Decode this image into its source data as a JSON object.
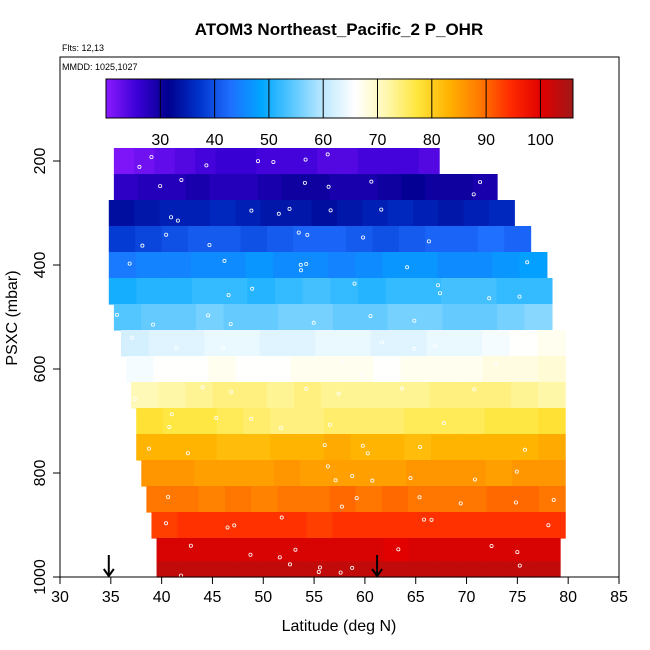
{
  "chart_data": {
    "type": "heatmap",
    "title": "ATOM3 Northeast_Pacific_2 P_OHR",
    "annotations": [
      "Flts: 12,13",
      "MMDD: 1025,1027"
    ],
    "xlabel": "Latitude (deg N)",
    "ylabel": "PSXC (mbar)",
    "xlim": [
      30,
      85
    ],
    "ylim": [
      1000,
      0
    ],
    "xticks": [
      30,
      35,
      40,
      45,
      50,
      55,
      60,
      65,
      70,
      75,
      80,
      85
    ],
    "yticks": [
      200,
      400,
      600,
      800,
      1000
    ],
    "colorbar": {
      "range": [
        20,
        106
      ],
      "ticks": [
        30,
        40,
        50,
        60,
        70,
        80,
        90,
        100
      ],
      "colors": [
        "#8b1aff",
        "#3b00d6",
        "#00008e",
        "#0033cc",
        "#1f6fff",
        "#00a6ff",
        "#5ac8ff",
        "#bfe9ff",
        "#ffffff",
        "#fff8b0",
        "#ffe63c",
        "#ffb300",
        "#ff7a00",
        "#ff2a00",
        "#e00000",
        "#a01818"
      ]
    },
    "arrows_at_lat": [
      34.8,
      61.2
    ],
    "rows": [
      {
        "p": 200,
        "lat": [
          35.3,
          67.3
        ],
        "v": [
          21,
          22,
          23,
          24,
          25,
          26,
          26,
          25,
          25,
          25,
          24,
          24,
          25,
          25,
          25,
          24
        ]
      },
      {
        "p": 250,
        "lat": [
          35.3,
          73.0
        ],
        "v": [
          27,
          28,
          28,
          29,
          28,
          28,
          29,
          30,
          30,
          29,
          29,
          30,
          31,
          30,
          30,
          29
        ]
      },
      {
        "p": 300,
        "lat": [
          34.8,
          74.7
        ],
        "v": [
          33,
          34,
          35,
          35,
          36,
          35,
          34,
          34,
          33,
          34,
          35,
          36,
          35,
          34,
          35,
          36
        ]
      },
      {
        "p": 350,
        "lat": [
          34.8,
          76.3
        ],
        "v": [
          38,
          39,
          40,
          41,
          41,
          40,
          41,
          42,
          42,
          41,
          40,
          41,
          42,
          42,
          43,
          42
        ]
      },
      {
        "p": 400,
        "lat": [
          34.8,
          77.9
        ],
        "v": [
          44,
          45,
          45,
          46,
          46,
          47,
          46,
          46,
          45,
          46,
          47,
          47,
          46,
          46,
          47,
          48
        ]
      },
      {
        "p": 450,
        "lat": [
          34.8,
          78.4
        ],
        "v": [
          50,
          51,
          51,
          52,
          52,
          51,
          52,
          53,
          52,
          51,
          52,
          52,
          53,
          53,
          52,
          52
        ]
      },
      {
        "p": 500,
        "lat": [
          35.3,
          78.4
        ],
        "v": [
          54,
          55,
          55,
          56,
          55,
          55,
          56,
          56,
          55,
          55,
          56,
          56,
          55,
          55,
          56,
          57
        ]
      },
      {
        "p": 550,
        "lat": [
          36.0,
          79.7
        ],
        "v": [
          62,
          63,
          63,
          64,
          64,
          63,
          63,
          64,
          64,
          63,
          63,
          64,
          64,
          65,
          66,
          67
        ]
      },
      {
        "p": 600,
        "lat": [
          36.5,
          79.7
        ],
        "v": [
          65,
          66,
          66,
          67,
          66,
          66,
          67,
          67,
          67,
          66,
          67,
          67,
          67,
          68,
          68,
          69
        ]
      },
      {
        "p": 650,
        "lat": [
          37.0,
          79.7
        ],
        "v": [
          71,
          72,
          73,
          74,
          74,
          73,
          74,
          73,
          73,
          73,
          73,
          74,
          74,
          74,
          73,
          72
        ]
      },
      {
        "p": 700,
        "lat": [
          37.5,
          79.7
        ],
        "v": [
          78,
          77,
          77,
          76,
          75,
          74,
          74,
          75,
          75,
          75,
          76,
          76,
          76,
          77,
          77,
          78
        ]
      },
      {
        "p": 750,
        "lat": [
          37.5,
          79.7
        ],
        "v": [
          83,
          83,
          83,
          82,
          82,
          83,
          83,
          84,
          83,
          83,
          82,
          83,
          83,
          83,
          83,
          84
        ]
      },
      {
        "p": 800,
        "lat": [
          38.0,
          79.7
        ],
        "v": [
          86,
          86,
          85,
          85,
          85,
          86,
          85,
          85,
          85,
          85,
          86,
          86,
          86,
          85,
          86,
          86
        ]
      },
      {
        "p": 850,
        "lat": [
          38.5,
          79.7
        ],
        "v": [
          89,
          89,
          88,
          89,
          88,
          89,
          89,
          90,
          89,
          90,
          89,
          89,
          89,
          90,
          90,
          89
        ]
      },
      {
        "p": 900,
        "lat": [
          39.0,
          79.7
        ],
        "v": [
          93,
          94,
          94,
          94,
          94,
          94,
          93,
          94,
          94,
          94,
          94,
          94,
          94,
          94,
          94,
          94
        ]
      },
      {
        "p": 950,
        "lat": [
          39.5,
          79.2
        ],
        "v": [
          101,
          101,
          101,
          101,
          101,
          101,
          101,
          101,
          101,
          100,
          101,
          101,
          101,
          101,
          101,
          101
        ]
      },
      {
        "p": 990,
        "lat": [
          39.5,
          79.2
        ],
        "v": [
          103,
          103,
          103,
          103,
          103,
          103,
          103,
          103,
          103,
          103,
          103,
          103,
          103,
          103,
          103,
          103
        ]
      }
    ]
  }
}
